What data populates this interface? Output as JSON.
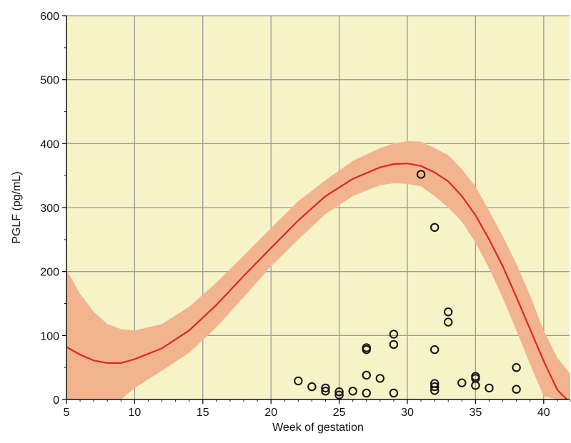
{
  "chart_data": {
    "type": "scatter",
    "xlabel": "Week of gestation",
    "ylabel": "PGLF (pg/mL)",
    "xlim": [
      5,
      42
    ],
    "ylim": [
      0,
      600
    ],
    "x_ticks": [
      5,
      10,
      15,
      20,
      25,
      30,
      35,
      40
    ],
    "y_ticks": [
      0,
      100,
      200,
      300,
      400,
      500,
      600
    ],
    "x_tick_labels": [
      "5",
      "10",
      "15",
      "20",
      "25",
      "30",
      "35",
      "40"
    ],
    "y_tick_labels": [
      "0",
      "100",
      "200",
      "300",
      "400",
      "500",
      "600"
    ],
    "grid": true,
    "colors": {
      "plot_background": "#f6f3c9",
      "band_fill": "#f2b48e",
      "curve": "#e0242a",
      "grid": "#9a9a9a",
      "marker": "#111111"
    },
    "series": [
      {
        "type": "line",
        "x": [
          5,
          6,
          7,
          8,
          9,
          10,
          12,
          14,
          16,
          18,
          20,
          22,
          24,
          26,
          28,
          29,
          30,
          31,
          32,
          33,
          34,
          35,
          36,
          37,
          38,
          39,
          40,
          41,
          41.7
        ],
        "y": [
          82,
          70,
          61,
          57,
          57,
          63,
          80,
          108,
          148,
          193,
          237,
          280,
          318,
          345,
          363,
          368,
          369,
          365,
          355,
          341,
          318,
          288,
          250,
          208,
          160,
          110,
          60,
          15,
          0
        ]
      },
      {
        "type": "band",
        "x": [
          5,
          6,
          7,
          8,
          9,
          10,
          12,
          14,
          16,
          18,
          20,
          22,
          24,
          26,
          28,
          29,
          30,
          31,
          32,
          33,
          34,
          35,
          36,
          37,
          38,
          39,
          40,
          41,
          42
        ],
        "upper": [
          203,
          165,
          137,
          118,
          110,
          108,
          118,
          145,
          183,
          225,
          268,
          310,
          343,
          373,
          393,
          400,
          404,
          403,
          393,
          382,
          360,
          333,
          295,
          255,
          212,
          163,
          108,
          65,
          40
        ],
        "lower": [
          0,
          0,
          0,
          0,
          0,
          18,
          45,
          73,
          113,
          160,
          208,
          250,
          290,
          318,
          335,
          338,
          337,
          333,
          318,
          300,
          278,
          245,
          205,
          158,
          108,
          55,
          5,
          0,
          0
        ]
      },
      {
        "type": "scatter",
        "points": [
          [
            22,
            29
          ],
          [
            23,
            20
          ],
          [
            24,
            18
          ],
          [
            24,
            13
          ],
          [
            25,
            12
          ],
          [
            25,
            7
          ],
          [
            26,
            13
          ],
          [
            27,
            81
          ],
          [
            27,
            78
          ],
          [
            27,
            38
          ],
          [
            27,
            10
          ],
          [
            28,
            33
          ],
          [
            29,
            102
          ],
          [
            29,
            86
          ],
          [
            29,
            10
          ],
          [
            31,
            352
          ],
          [
            32,
            269
          ],
          [
            32,
            78
          ],
          [
            32,
            25
          ],
          [
            32,
            20
          ],
          [
            32,
            14
          ],
          [
            33,
            137
          ],
          [
            33,
            121
          ],
          [
            34,
            26
          ],
          [
            35,
            36
          ],
          [
            35,
            33
          ],
          [
            35,
            22
          ],
          [
            36,
            18
          ],
          [
            38,
            50
          ],
          [
            38,
            16
          ]
        ]
      }
    ]
  }
}
